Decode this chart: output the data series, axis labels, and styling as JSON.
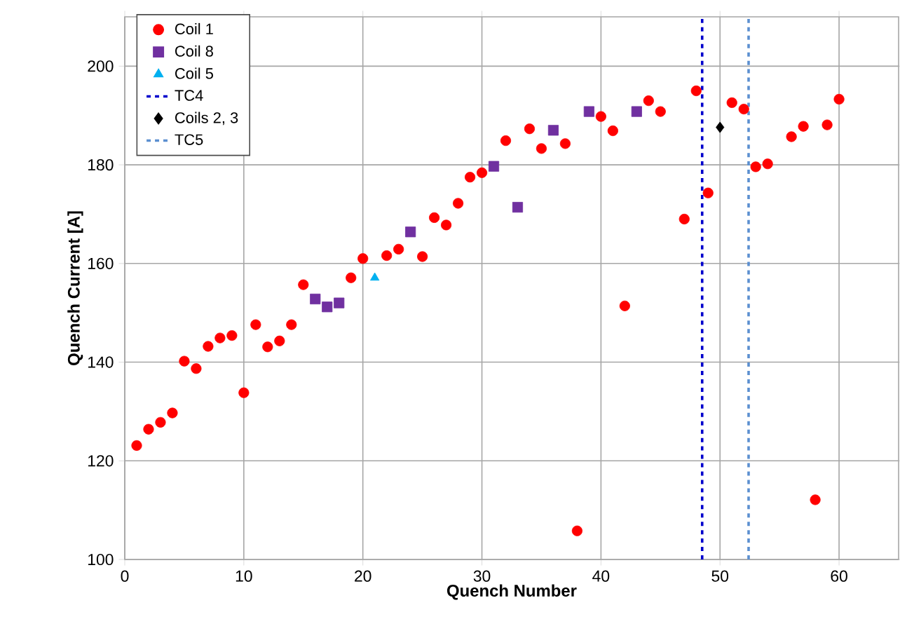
{
  "chart_data": {
    "type": "scatter",
    "xlabel": "Quench Number",
    "ylabel": "Quench Current  [A]",
    "xlim": [
      0,
      65
    ],
    "ylim": [
      100,
      210
    ],
    "xticks": [
      0,
      10,
      20,
      30,
      40,
      50,
      60
    ],
    "yticks": [
      100,
      120,
      140,
      160,
      180,
      200
    ],
    "grid": true,
    "legend": "top left",
    "series": [
      {
        "name": "Coil 1",
        "color": "#ff0000",
        "marker": "circle",
        "x": [
          1,
          2,
          3,
          4,
          5,
          6,
          7,
          8,
          9,
          10,
          11,
          12,
          13,
          14,
          15,
          19,
          20,
          22,
          23,
          25,
          26,
          27,
          28,
          29,
          30,
          32,
          34,
          35,
          37,
          38,
          40,
          41,
          42,
          44,
          45,
          47,
          48,
          49,
          51,
          52,
          53,
          54,
          56,
          57,
          58,
          59,
          60
        ],
        "values": [
          123.1,
          126.4,
          127.8,
          129.7,
          140.2,
          138.7,
          143.2,
          144.9,
          145.4,
          133.8,
          147.6,
          143.1,
          144.3,
          147.6,
          155.7,
          157.1,
          161,
          161.6,
          162.9,
          161.4,
          169.3,
          167.8,
          172.2,
          177.5,
          178.4,
          184.9,
          187.3,
          183.3,
          184.3,
          105.8,
          189.8,
          186.9,
          151.4,
          193,
          190.8,
          169,
          195,
          174.3,
          192.6,
          191.3,
          179.6,
          180.2,
          185.7,
          187.8,
          112.1,
          188.1,
          193.3
        ]
      },
      {
        "name": "Coil 8",
        "color": "#7030a0",
        "marker": "square",
        "x": [
          16,
          17,
          18,
          24,
          31,
          33,
          36,
          39,
          43
        ],
        "values": [
          152.8,
          151.2,
          152,
          166.4,
          179.7,
          171.4,
          187,
          190.8,
          190.8
        ]
      },
      {
        "name": "Coil 5",
        "color": "#00b0f0",
        "marker": "triangle",
        "x": [
          21
        ],
        "values": [
          157.1
        ]
      },
      {
        "name": "TC4",
        "type": "line",
        "color": "#0000cc",
        "marker": "none",
        "line_style": "dashed",
        "x": [
          48.5,
          48.5
        ],
        "values": [
          100,
          210
        ]
      },
      {
        "name": "Coils 2, 3",
        "color": "#000000",
        "marker": "diamond",
        "x": [
          50
        ],
        "values": [
          187.6
        ]
      },
      {
        "name": "TC5",
        "type": "line",
        "color": "#5b8fd0",
        "marker": "none",
        "line_style": "dashed",
        "x": [
          52.4,
          52.4
        ],
        "values": [
          100,
          210
        ]
      }
    ]
  }
}
